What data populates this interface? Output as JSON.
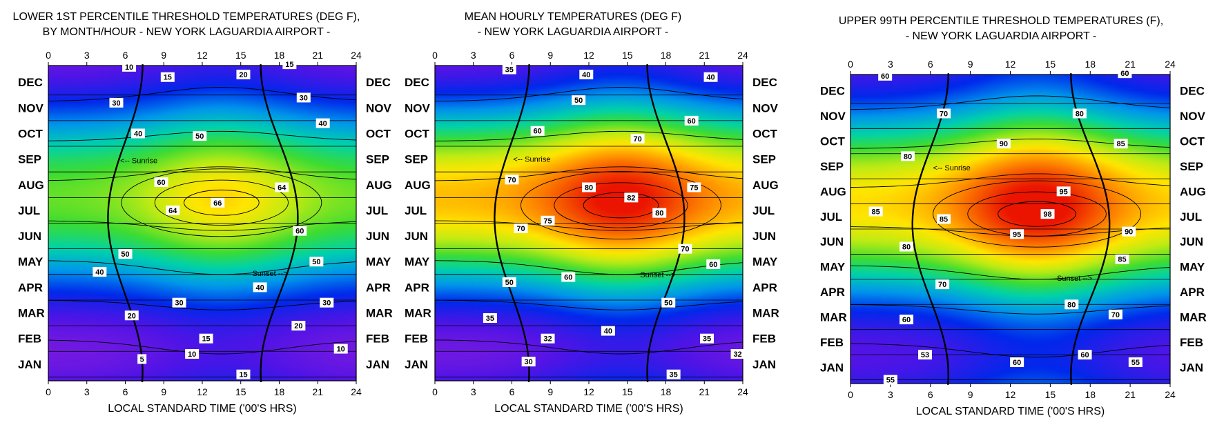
{
  "colors": {
    "background": "#ffffff"
  },
  "chart_data": [
    {
      "type": "heatmap",
      "title_line1": "LOWER 1ST PERCENTILE THRESHOLD TEMPERATURES (DEG F),",
      "title_line2": "BY MONTH/HOUR - NEW YORK LAGUARDIA AIRPORT -",
      "xlabel": "LOCAL STANDARD TIME ('00'S HRS)",
      "x_ticks": [
        "0",
        "3",
        "6",
        "9",
        "12",
        "15",
        "18",
        "21",
        "24"
      ],
      "months": [
        "JAN",
        "FEB",
        "MAR",
        "APR",
        "MAY",
        "JUN",
        "JUL",
        "AUG",
        "SEP",
        "OCT",
        "NOV",
        "DEC"
      ],
      "color_range": [
        0,
        70
      ],
      "base_temp": 6,
      "amplitude": 40,
      "diurnal": 8,
      "peak": {
        "hour": 13.5,
        "month_index": 6.3,
        "value": 66
      },
      "contour_labels": [
        {
          "text": "10",
          "hour": 6.3,
          "m": 11.6
        },
        {
          "text": "15",
          "hour": 9.3,
          "m": 11.2
        },
        {
          "text": "20",
          "hour": 15.2,
          "m": 11.3
        },
        {
          "text": "15",
          "hour": 18.8,
          "m": 11.7
        },
        {
          "text": "30",
          "hour": 5.3,
          "m": 10.2
        },
        {
          "text": "30",
          "hour": 19.9,
          "m": 10.4
        },
        {
          "text": "40",
          "hour": 7.0,
          "m": 9.0
        },
        {
          "text": "50",
          "hour": 11.8,
          "m": 8.9
        },
        {
          "text": "40",
          "hour": 21.4,
          "m": 9.4
        },
        {
          "text": "60",
          "hour": 8.8,
          "m": 7.1
        },
        {
          "text": "64",
          "hour": 18.2,
          "m": 6.9
        },
        {
          "text": "66",
          "hour": 13.2,
          "m": 6.3
        },
        {
          "text": "64",
          "hour": 9.7,
          "m": 6.0
        },
        {
          "text": "60",
          "hour": 19.6,
          "m": 5.2
        },
        {
          "text": "50",
          "hour": 6.0,
          "m": 4.3
        },
        {
          "text": "50",
          "hour": 20.9,
          "m": 4.0
        },
        {
          "text": "40",
          "hour": 4.0,
          "m": 3.6
        },
        {
          "text": "40",
          "hour": 16.5,
          "m": 3.0
        },
        {
          "text": "30",
          "hour": 10.2,
          "m": 2.4
        },
        {
          "text": "30",
          "hour": 21.7,
          "m": 2.4
        },
        {
          "text": "20",
          "hour": 6.5,
          "m": 1.9
        },
        {
          "text": "20",
          "hour": 19.5,
          "m": 1.5
        },
        {
          "text": "15",
          "hour": 12.3,
          "m": 1.0
        },
        {
          "text": "10",
          "hour": 11.2,
          "m": 0.4
        },
        {
          "text": "10",
          "hour": 22.8,
          "m": 0.6
        },
        {
          "text": "5",
          "hour": 7.3,
          "m": 0.2
        },
        {
          "text": "15",
          "hour": 15.2,
          "m": -0.4
        }
      ],
      "annotations": [
        {
          "text": "<-- Sunrise",
          "hour": 5.6,
          "m": 7.95
        },
        {
          "text": "Sunset -->",
          "hour": 15.9,
          "m": 3.55
        }
      ]
    },
    {
      "type": "heatmap",
      "title_line1": "MEAN HOURLY TEMPERATURES (DEG F)",
      "title_line2": "- NEW YORK LAGUARDIA AIRPORT -",
      "xlabel": "LOCAL STANDARD TIME ('00'S HRS)",
      "x_ticks": [
        "0",
        "3",
        "6",
        "9",
        "12",
        "15",
        "18",
        "21",
        "24"
      ],
      "months": [
        "JAN",
        "FEB",
        "MAR",
        "APR",
        "MAY",
        "JUN",
        "JUL",
        "AUG",
        "SEP",
        "OCT",
        "NOV",
        "DEC"
      ],
      "color_range": [
        25,
        85
      ],
      "base_temp": 31,
      "amplitude": 46,
      "diurnal": 9,
      "peak": {
        "hour": 14.5,
        "month_index": 6.2,
        "value": 82
      },
      "contour_labels": [
        {
          "text": "35",
          "hour": 5.8,
          "m": 11.5
        },
        {
          "text": "40",
          "hour": 11.8,
          "m": 11.3
        },
        {
          "text": "40",
          "hour": 21.5,
          "m": 11.2
        },
        {
          "text": "50",
          "hour": 11.2,
          "m": 10.3
        },
        {
          "text": "60",
          "hour": 8.0,
          "m": 9.1
        },
        {
          "text": "60",
          "hour": 20.0,
          "m": 9.5
        },
        {
          "text": "70",
          "hour": 15.8,
          "m": 8.8
        },
        {
          "text": "70",
          "hour": 6.0,
          "m": 7.2
        },
        {
          "text": "75",
          "hour": 20.2,
          "m": 6.9
        },
        {
          "text": "80",
          "hour": 12.0,
          "m": 6.9
        },
        {
          "text": "82",
          "hour": 15.3,
          "m": 6.5
        },
        {
          "text": "80",
          "hour": 17.5,
          "m": 5.9
        },
        {
          "text": "75",
          "hour": 8.8,
          "m": 5.6
        },
        {
          "text": "70",
          "hour": 6.7,
          "m": 5.3
        },
        {
          "text": "70",
          "hour": 19.5,
          "m": 4.5
        },
        {
          "text": "60",
          "hour": 10.4,
          "m": 3.4
        },
        {
          "text": "60",
          "hour": 21.7,
          "m": 3.9
        },
        {
          "text": "50",
          "hour": 5.8,
          "m": 3.2
        },
        {
          "text": "50",
          "hour": 18.2,
          "m": 2.4
        },
        {
          "text": "40",
          "hour": 13.5,
          "m": 1.3
        },
        {
          "text": "35",
          "hour": 4.3,
          "m": 1.8
        },
        {
          "text": "35",
          "hour": 21.2,
          "m": 1.0
        },
        {
          "text": "32",
          "hour": 8.8,
          "m": 1.0
        },
        {
          "text": "32",
          "hour": 23.6,
          "m": 0.4
        },
        {
          "text": "30",
          "hour": 7.3,
          "m": 0.1
        },
        {
          "text": "35",
          "hour": 18.6,
          "m": -0.4
        }
      ],
      "annotations": [
        {
          "text": "<-- Sunrise",
          "hour": 6.1,
          "m": 8.0
        },
        {
          "text": "Sunset -->",
          "hour": 16.0,
          "m": 3.5
        }
      ]
    },
    {
      "type": "heatmap",
      "title_line1": "UPPER 99TH PERCENTILE THRESHOLD TEMPERATURES (F),",
      "title_line2": "- NEW YORK LAGUARDIA AIRPORT -",
      "xlabel": "LOCAL STANDARD TIME ('00'S HRS)",
      "x_ticks": [
        "0",
        "3",
        "6",
        "9",
        "12",
        "15",
        "18",
        "21",
        "24"
      ],
      "months": [
        "JAN",
        "FEB",
        "MAR",
        "APR",
        "MAY",
        "JUN",
        "JUL",
        "AUG",
        "SEP",
        "OCT",
        "NOV",
        "DEC"
      ],
      "color_range": [
        48,
        100
      ],
      "base_temp": 56,
      "amplitude": 36,
      "diurnal": 10,
      "peak": {
        "hour": 14.0,
        "month_index": 6.1,
        "value": 98
      },
      "contour_labels": [
        {
          "text": "60",
          "hour": 2.6,
          "m": 11.6
        },
        {
          "text": "60",
          "hour": 20.6,
          "m": 11.7
        },
        {
          "text": "70",
          "hour": 7.0,
          "m": 10.1
        },
        {
          "text": "80",
          "hour": 17.2,
          "m": 10.1
        },
        {
          "text": "80",
          "hour": 4.3,
          "m": 8.4
        },
        {
          "text": "90",
          "hour": 11.5,
          "m": 8.9
        },
        {
          "text": "85",
          "hour": 20.3,
          "m": 8.9
        },
        {
          "text": "95",
          "hour": 16.0,
          "m": 7.0
        },
        {
          "text": "85",
          "hour": 1.9,
          "m": 6.2
        },
        {
          "text": "85",
          "hour": 7.0,
          "m": 5.9
        },
        {
          "text": "98",
          "hour": 14.8,
          "m": 6.1
        },
        {
          "text": "95",
          "hour": 12.5,
          "m": 5.3
        },
        {
          "text": "90",
          "hour": 20.9,
          "m": 5.4
        },
        {
          "text": "80",
          "hour": 4.2,
          "m": 4.8
        },
        {
          "text": "85",
          "hour": 20.4,
          "m": 4.3
        },
        {
          "text": "70",
          "hour": 6.9,
          "m": 3.3
        },
        {
          "text": "80",
          "hour": 16.6,
          "m": 2.5
        },
        {
          "text": "70",
          "hour": 19.9,
          "m": 2.1
        },
        {
          "text": "60",
          "hour": 4.2,
          "m": 1.9
        },
        {
          "text": "53",
          "hour": 5.6,
          "m": 0.5
        },
        {
          "text": "60",
          "hour": 12.5,
          "m": 0.2
        },
        {
          "text": "60",
          "hour": 17.6,
          "m": 0.5
        },
        {
          "text": "55",
          "hour": 21.4,
          "m": 0.2
        },
        {
          "text": "55",
          "hour": 3.0,
          "m": -0.5
        }
      ],
      "annotations": [
        {
          "text": "<-- Sunrise",
          "hour": 6.2,
          "m": 7.95
        },
        {
          "text": "Sunset -->",
          "hour": 15.5,
          "m": 3.55
        }
      ]
    }
  ]
}
